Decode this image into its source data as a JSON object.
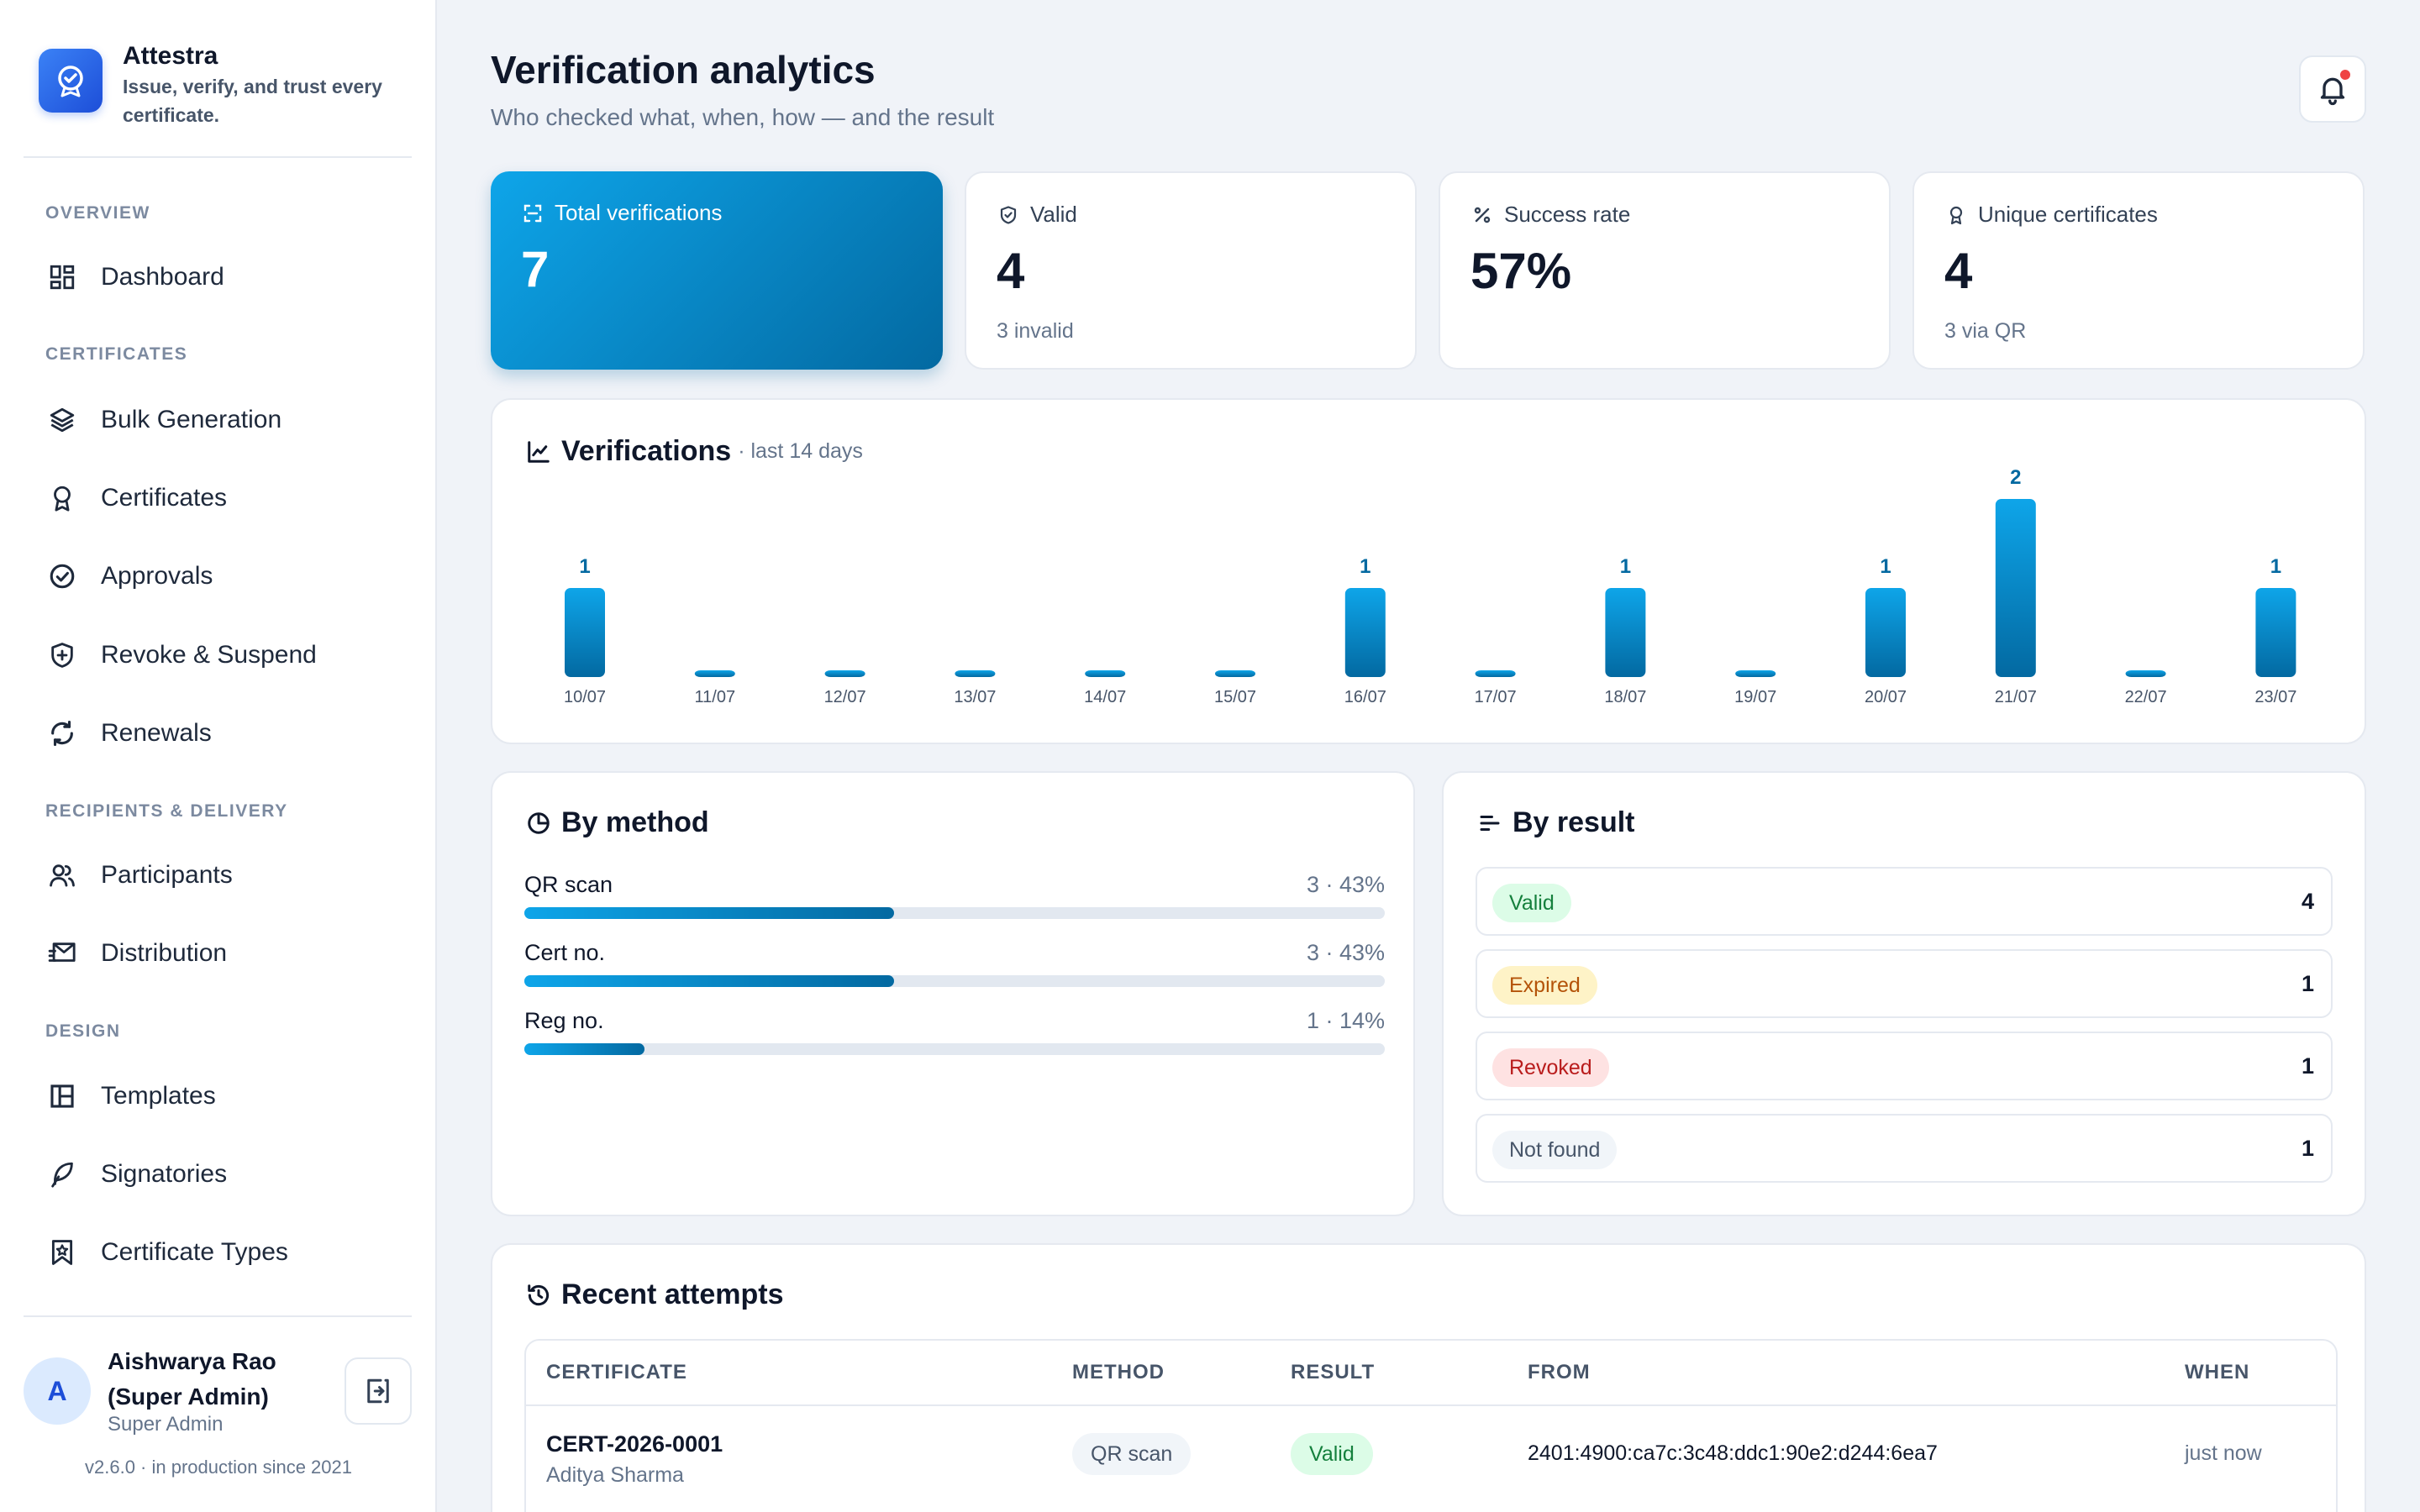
{
  "app": {
    "name": "Attestra",
    "tagline": "Issue, verify, and trust every certificate."
  },
  "sidebar": {
    "sections": [
      {
        "label": "OVERVIEW"
      },
      {
        "label": "CERTIFICATES"
      },
      {
        "label": "RECIPIENTS & DELIVERY"
      },
      {
        "label": "DESIGN"
      }
    ],
    "items": [
      {
        "label": "Dashboard",
        "icon": "dashboard-icon"
      },
      {
        "label": "Bulk Generation",
        "icon": "layers-icon"
      },
      {
        "label": "Certificates",
        "icon": "award-icon"
      },
      {
        "label": "Approvals",
        "icon": "check-circle-icon"
      },
      {
        "label": "Revoke & Suspend",
        "icon": "shield-plus-icon"
      },
      {
        "label": "Renewals",
        "icon": "refresh-icon"
      },
      {
        "label": "Participants",
        "icon": "users-icon"
      },
      {
        "label": "Distribution",
        "icon": "mail-send-icon"
      },
      {
        "label": "Templates",
        "icon": "layout-icon"
      },
      {
        "label": "Signatories",
        "icon": "feather-icon"
      },
      {
        "label": "Certificate Types",
        "icon": "bookmark-star-icon"
      }
    ],
    "user": {
      "initial": "A",
      "name": "Aishwarya Rao (Super Admin)",
      "role": "Super Admin"
    },
    "version": "v2.6.0 · in production since 2021"
  },
  "header": {
    "title": "Verification analytics",
    "subtitle": "Who checked what, when, how — and the result"
  },
  "stats": [
    {
      "label": "Total verifications",
      "value": "7",
      "foot": ""
    },
    {
      "label": "Valid",
      "value": "4",
      "foot": "3 invalid"
    },
    {
      "label": "Success rate",
      "value": "57%",
      "foot": ""
    },
    {
      "label": "Unique certificates",
      "value": "4",
      "foot": "3 via QR"
    }
  ],
  "verifications_card": {
    "title": "Verifications",
    "subtitle": "· last 14 days"
  },
  "chart_data": {
    "type": "bar",
    "categories": [
      "10/07",
      "11/07",
      "12/07",
      "13/07",
      "14/07",
      "15/07",
      "16/07",
      "17/07",
      "18/07",
      "19/07",
      "20/07",
      "21/07",
      "22/07",
      "23/07"
    ],
    "values": [
      1,
      0,
      0,
      0,
      0,
      0,
      1,
      0,
      1,
      0,
      1,
      2,
      0,
      1
    ],
    "title": "Verifications",
    "subtitle": "· last 14 days",
    "xlabel": "",
    "ylabel": "",
    "ylim": [
      0,
      2
    ],
    "grid": false,
    "legend": "none",
    "colors": {
      "bar_top": "#0ea5e9",
      "bar_bottom": "#0369a1",
      "label": "#0369a1"
    }
  },
  "by_method": {
    "title": "By method",
    "rows": [
      {
        "label": "QR scan",
        "value": "3 · 43%",
        "fraction": 0.43
      },
      {
        "label": "Cert no.",
        "value": "3 · 43%",
        "fraction": 0.43
      },
      {
        "label": "Reg no.",
        "value": "1 · 14%",
        "fraction": 0.14
      }
    ]
  },
  "by_result": {
    "title": "By result",
    "rows": [
      {
        "label": "Valid",
        "count": "4",
        "bg": "#dcfce7",
        "fg": "#15803d"
      },
      {
        "label": "Expired",
        "count": "1",
        "bg": "#fef3c7",
        "fg": "#b45309"
      },
      {
        "label": "Revoked",
        "count": "1",
        "bg": "#fee2e2",
        "fg": "#b91c1c"
      },
      {
        "label": "Not found",
        "count": "1",
        "bg": "#f1f5f9",
        "fg": "#475569"
      }
    ]
  },
  "recent": {
    "title": "Recent attempts",
    "columns": [
      "CERTIFICATE",
      "METHOD",
      "RESULT",
      "FROM",
      "WHEN"
    ],
    "rows": [
      {
        "certificate": "CERT-2026-0001",
        "participant": "Aditya Sharma",
        "method": "QR scan",
        "result": "Valid",
        "from": "2401:4900:ca7c:3c48:ddc1:90e2:d244:6ea7",
        "when": "just now"
      }
    ]
  },
  "colors": {
    "accent": "#0284c7",
    "accent_dark": "#0369a1",
    "notification": "#ef4444"
  }
}
